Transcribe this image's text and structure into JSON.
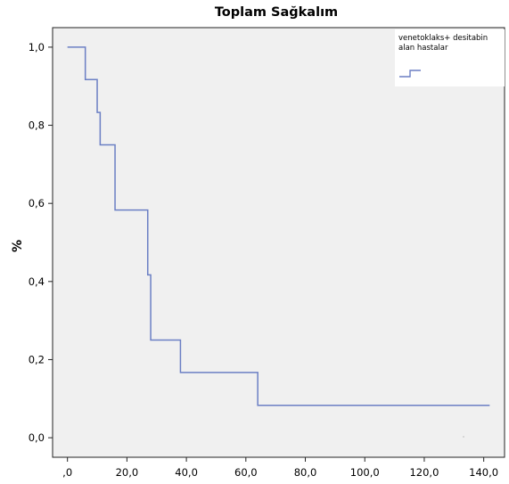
{
  "chart_data": {
    "type": "line",
    "title": "Toplam Sağkalım",
    "xlabel": "",
    "ylabel": "%",
    "xlim": [
      -5,
      147
    ],
    "ylim": [
      -0.05,
      1.05
    ],
    "x_ticks": [
      0,
      20,
      40,
      60,
      80,
      100,
      120,
      140
    ],
    "x_tick_labels": [
      ",0",
      "20,0",
      "40,0",
      "60,0",
      "80,0",
      "100,0",
      "120,0",
      "140,0"
    ],
    "y_ticks": [
      0,
      0.2,
      0.4,
      0.6,
      0.8,
      1.0
    ],
    "y_tick_labels": [
      "0,0",
      "0,2",
      "0,4",
      "0,6",
      "0,8",
      "1,0"
    ],
    "grid": false,
    "legend_position": "top-right",
    "plot_background": "#f0f0f0",
    "series": [
      {
        "name": "venetoklaks+ desitabin alan hastalar",
        "color": "#6b7fc4",
        "step": true,
        "x": [
          0,
          6,
          6,
          10,
          10,
          11,
          11,
          16,
          16,
          27,
          27,
          28,
          28,
          38,
          38,
          64,
          64,
          142
        ],
        "y": [
          1.0,
          1.0,
          0.917,
          0.917,
          0.833,
          0.833,
          0.75,
          0.75,
          0.583,
          0.583,
          0.417,
          0.417,
          0.25,
          0.25,
          0.167,
          0.167,
          0.083,
          0.083
        ]
      }
    ]
  }
}
